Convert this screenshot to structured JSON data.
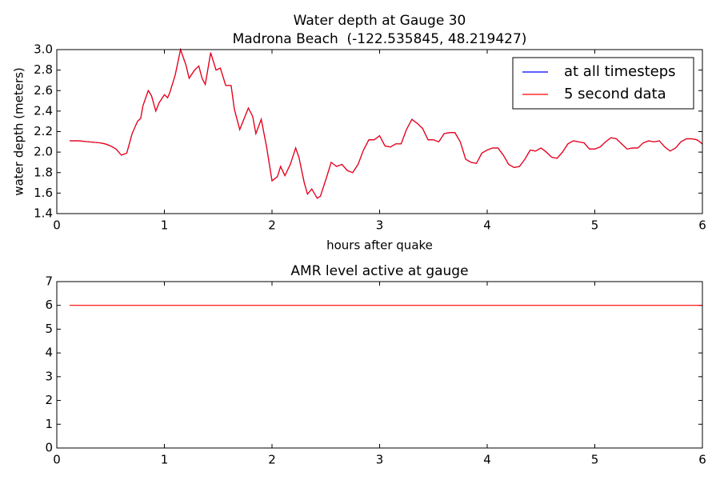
{
  "chart_data": [
    {
      "type": "line",
      "title": "Water depth at Gauge 30",
      "subtitle": "Madrona Beach  (-122.535845, 48.219427)",
      "x_label": "hours after quake",
      "y_label": "water depth (meters)",
      "x": [
        0.12,
        0.2,
        0.3,
        0.4,
        0.45,
        0.5,
        0.55,
        0.6,
        0.65,
        0.7,
        0.75,
        0.78,
        0.8,
        0.85,
        0.88,
        0.92,
        0.95,
        1.0,
        1.03,
        1.05,
        1.1,
        1.15,
        1.2,
        1.23,
        1.28,
        1.32,
        1.35,
        1.38,
        1.43,
        1.48,
        1.52,
        1.57,
        1.62,
        1.65,
        1.7,
        1.75,
        1.78,
        1.82,
        1.85,
        1.9,
        1.95,
        2.0,
        2.05,
        2.08,
        2.12,
        2.17,
        2.22,
        2.25,
        2.3,
        2.33,
        2.37,
        2.42,
        2.45,
        2.5,
        2.55,
        2.6,
        2.65,
        2.7,
        2.75,
        2.8,
        2.85,
        2.9,
        2.95,
        3.0,
        3.05,
        3.1,
        3.15,
        3.2,
        3.25,
        3.3,
        3.35,
        3.4,
        3.45,
        3.5,
        3.55,
        3.6,
        3.65,
        3.7,
        3.75,
        3.8,
        3.85,
        3.9,
        3.95,
        4.0,
        4.05,
        4.1,
        4.15,
        4.2,
        4.25,
        4.3,
        4.35,
        4.4,
        4.45,
        4.5,
        4.55,
        4.6,
        4.65,
        4.7,
        4.75,
        4.8,
        4.85,
        4.9,
        4.95,
        5.0,
        5.05,
        5.1,
        5.15,
        5.2,
        5.25,
        5.3,
        5.35,
        5.4,
        5.45,
        5.5,
        5.55,
        5.6,
        5.65,
        5.7,
        5.75,
        5.8,
        5.85,
        5.9,
        5.95,
        6.0
      ],
      "series": [
        {
          "name": "at all timesteps",
          "color": "#0000ff",
          "values": [
            2.11,
            2.11,
            2.1,
            2.09,
            2.08,
            2.06,
            2.03,
            1.97,
            1.99,
            2.18,
            2.3,
            2.33,
            2.45,
            2.6,
            2.55,
            2.4,
            2.48,
            2.56,
            2.53,
            2.58,
            2.75,
            3.0,
            2.85,
            2.72,
            2.8,
            2.84,
            2.72,
            2.66,
            2.97,
            2.8,
            2.82,
            2.65,
            2.65,
            2.42,
            2.22,
            2.35,
            2.43,
            2.35,
            2.18,
            2.32,
            2.05,
            1.72,
            1.76,
            1.86,
            1.77,
            1.88,
            2.04,
            1.95,
            1.7,
            1.59,
            1.64,
            1.55,
            1.57,
            1.73,
            1.9,
            1.86,
            1.88,
            1.82,
            1.8,
            1.88,
            2.02,
            2.12,
            2.12,
            2.16,
            2.06,
            2.05,
            2.08,
            2.08,
            2.22,
            2.32,
            2.28,
            2.23,
            2.12,
            2.12,
            2.1,
            2.18,
            2.19,
            2.19,
            2.1,
            1.93,
            1.9,
            1.89,
            1.99,
            2.02,
            2.04,
            2.04,
            1.97,
            1.88,
            1.85,
            1.86,
            1.93,
            2.02,
            2.01,
            2.04,
            2.0,
            1.95,
            1.94,
            2.0,
            2.08,
            2.11,
            2.1,
            2.09,
            2.03,
            2.03,
            2.05,
            2.1,
            2.14,
            2.13,
            2.08,
            2.03,
            2.04,
            2.04,
            2.09,
            2.11,
            2.1,
            2.11,
            2.05,
            2.01,
            2.04,
            2.1,
            2.13,
            2.13,
            2.12,
            2.08
          ]
        },
        {
          "name": "5 second data",
          "color": "#ff0000",
          "values": [
            2.11,
            2.11,
            2.1,
            2.09,
            2.08,
            2.06,
            2.03,
            1.97,
            1.99,
            2.18,
            2.3,
            2.33,
            2.45,
            2.6,
            2.55,
            2.4,
            2.48,
            2.56,
            2.53,
            2.58,
            2.75,
            3.0,
            2.85,
            2.72,
            2.8,
            2.84,
            2.72,
            2.66,
            2.97,
            2.8,
            2.82,
            2.65,
            2.65,
            2.42,
            2.22,
            2.35,
            2.43,
            2.35,
            2.18,
            2.32,
            2.05,
            1.72,
            1.76,
            1.86,
            1.77,
            1.88,
            2.04,
            1.95,
            1.7,
            1.59,
            1.64,
            1.55,
            1.57,
            1.73,
            1.9,
            1.86,
            1.88,
            1.82,
            1.8,
            1.88,
            2.02,
            2.12,
            2.12,
            2.16,
            2.06,
            2.05,
            2.08,
            2.08,
            2.22,
            2.32,
            2.28,
            2.23,
            2.12,
            2.12,
            2.1,
            2.18,
            2.19,
            2.19,
            2.1,
            1.93,
            1.9,
            1.89,
            1.99,
            2.02,
            2.04,
            2.04,
            1.97,
            1.88,
            1.85,
            1.86,
            1.93,
            2.02,
            2.01,
            2.04,
            2.0,
            1.95,
            1.94,
            2.0,
            2.08,
            2.11,
            2.1,
            2.09,
            2.03,
            2.03,
            2.05,
            2.1,
            2.14,
            2.13,
            2.08,
            2.03,
            2.04,
            2.04,
            2.09,
            2.11,
            2.1,
            2.11,
            2.05,
            2.01,
            2.04,
            2.1,
            2.13,
            2.13,
            2.12,
            2.08
          ]
        }
      ],
      "xlim": [
        0,
        6
      ],
      "xticks": [
        0,
        1,
        2,
        3,
        4,
        5,
        6
      ],
      "ylim": [
        1.4,
        3.0
      ],
      "yticks": [
        1.4,
        1.6,
        1.8,
        {
          "value": 2,
          "label": "2.0"
        },
        2.2,
        2.4,
        2.6,
        2.8,
        {
          "value": 3,
          "label": "3.0"
        }
      ],
      "legend": "upper right"
    },
    {
      "type": "line",
      "title": "AMR level active at gauge",
      "x": [
        0.12,
        6.0
      ],
      "series": [
        {
          "color": "#ff0000",
          "values": [
            6,
            6
          ]
        }
      ],
      "xlim": [
        0,
        6
      ],
      "xticks": [
        0,
        1,
        2,
        3,
        4,
        5,
        6
      ],
      "ylim": [
        0,
        7
      ],
      "yticks": [
        0,
        1,
        2,
        3,
        4,
        5,
        6,
        7
      ]
    }
  ]
}
